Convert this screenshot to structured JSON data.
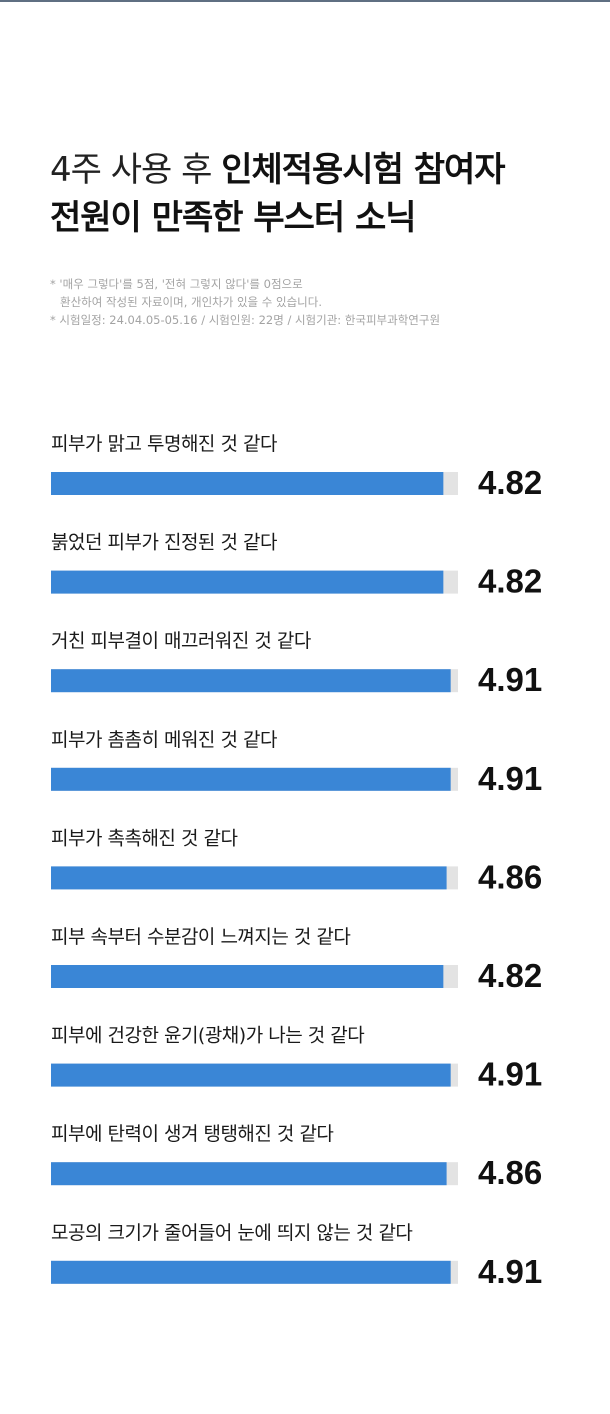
{
  "heading": {
    "line1_light": "4주 사용 후 ",
    "line1_bold": "인체적용시험 참여자",
    "line2_bold": "전원이 만족한 부스터 소닉"
  },
  "notes": {
    "line1": "* '매우 그렇다'를 5점, '전혀 그렇지 않다'를 0점으로",
    "line2": "환산하여 작성된 자료이며, 개인차가 있을 수 있습니다.",
    "line3": "* 시험일정: 24.04.05-05.16 / 시험인원: 22명 / 시험기관: 한국피부과학연구원"
  },
  "colors": {
    "bar": "#3a86d6",
    "track": "#e3e3e3",
    "label": "#1a1a1a",
    "value": "#111111"
  },
  "chart_data": {
    "type": "bar",
    "orientation": "horizontal",
    "xlim": [
      0,
      5
    ],
    "categories": [
      "피부가 맑고 투명해진 것 같다",
      "붉었던 피부가 진정된 것 같다",
      "거친 피부결이 매끄러워진 것 같다",
      "피부가 촘촘히 메워진 것 같다",
      "피부가 촉촉해진 것 같다",
      "피부 속부터 수분감이 느껴지는 것 같다",
      "피부에 건강한 윤기(광채)가 나는 것 같다",
      "피부에 탄력이 생겨 탱탱해진 것 같다",
      "모공의 크기가 줄어들어 눈에 띄지 않는 것 같다"
    ],
    "values": [
      4.82,
      4.82,
      4.91,
      4.91,
      4.86,
      4.82,
      4.91,
      4.86,
      4.91
    ],
    "value_labels": [
      "4.82",
      "4.82",
      "4.91",
      "4.91",
      "4.86",
      "4.82",
      "4.91",
      "4.86",
      "4.91"
    ]
  }
}
